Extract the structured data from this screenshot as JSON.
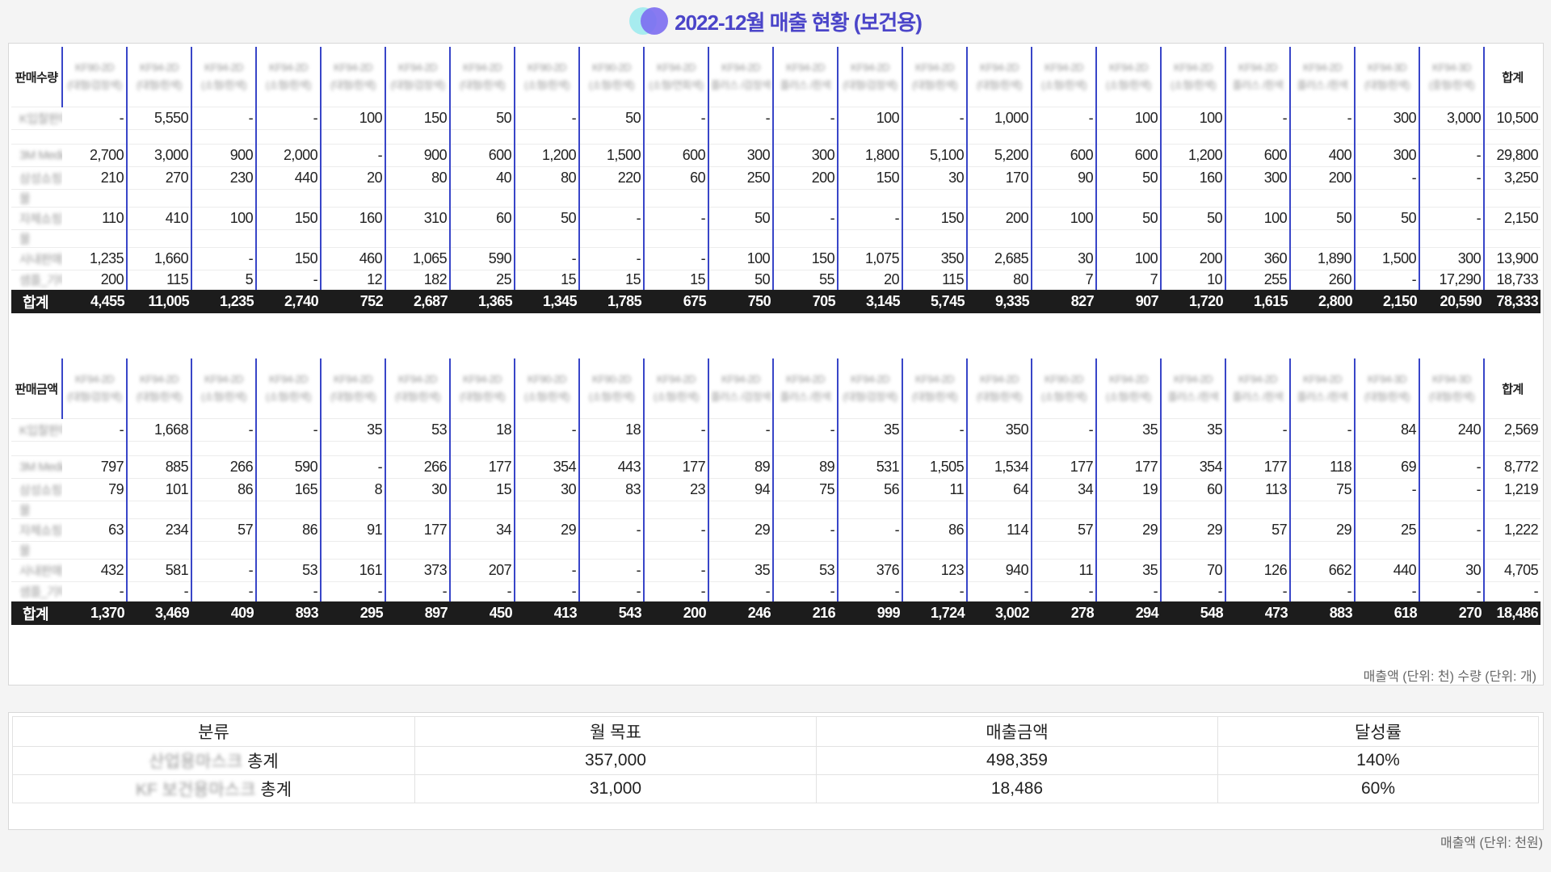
{
  "title": "2022-12월 매출 현황 (보건용)",
  "qty": {
    "label": "판매수량",
    "total_label": "합계",
    "products": [
      {
        "l1": "KF90-2D",
        "l2": "(대형/검정색)"
      },
      {
        "l1": "KF94-2D",
        "l2": "(대형/흰색)"
      },
      {
        "l1": "KF94-2D",
        "l2": "(소형/흰색)"
      },
      {
        "l1": "KF94-2D",
        "l2": "(소형/흰색)"
      },
      {
        "l1": "KF94-2D",
        "l2": "(대형/흰색)"
      },
      {
        "l1": "KF94-2D",
        "l2": "(대형/검정색)"
      },
      {
        "l1": "KF94-2D",
        "l2": "(대형/흰색)"
      },
      {
        "l1": "KF90-2D",
        "l2": "(소형/흰색)"
      },
      {
        "l1": "KF90-2D",
        "l2": "(소형/흰색)"
      },
      {
        "l1": "KF94-2D",
        "l2": "(소형/연회색)"
      },
      {
        "l1": "KF94-2D",
        "l2": "플러스 /검정색"
      },
      {
        "l1": "KF94-2D",
        "l2": "플러스 /흰색"
      },
      {
        "l1": "KF94-2D",
        "l2": "(대형/검정색)"
      },
      {
        "l1": "KF94-2D",
        "l2": "(대형/흰색)"
      },
      {
        "l1": "KF94-2D",
        "l2": "(대형/흰색)"
      },
      {
        "l1": "KF94-2D",
        "l2": "(소형/흰색)"
      },
      {
        "l1": "KF94-2D",
        "l2": "(소형/흰색)"
      },
      {
        "l1": "KF94-2D",
        "l2": "(소형/흰색)"
      },
      {
        "l1": "KF94-2D",
        "l2": "플러스 /흰색"
      },
      {
        "l1": "KF94-2D",
        "l2": "플러스 /흰색"
      },
      {
        "l1": "KF94-3D",
        "l2": "(대형/흰색)"
      },
      {
        "l1": "KF94-3D",
        "l2": "(중형/흰색)"
      }
    ],
    "rows": [
      {
        "label": "K입찰판매",
        "vals": [
          "-",
          "5,550",
          "-",
          "-",
          "100",
          "150",
          "50",
          "-",
          "50",
          "-",
          "-",
          "-",
          "100",
          "-",
          "1,000",
          "-",
          "100",
          "100",
          "-",
          "-",
          "300",
          "3,000"
        ],
        "total": "10,500"
      },
      {
        "label": "",
        "vals": [
          "",
          "",
          "",
          "",
          "",
          "",
          "",
          "",
          "",
          "",
          "",
          "",
          "",
          "",
          "",
          "",
          "",
          "",
          "",
          "",
          "",
          ""
        ],
        "total": ""
      },
      {
        "label": "3M Media",
        "vals": [
          "2,700",
          "3,000",
          "900",
          "2,000",
          "-",
          "900",
          "600",
          "1,200",
          "1,500",
          "600",
          "300",
          "300",
          "1,800",
          "5,100",
          "5,200",
          "600",
          "600",
          "1,200",
          "600",
          "400",
          "300",
          "-"
        ],
        "total": "29,800"
      },
      {
        "label": "삼성쇼핑",
        "vals": [
          "210",
          "270",
          "230",
          "440",
          "20",
          "80",
          "40",
          "80",
          "220",
          "60",
          "250",
          "200",
          "150",
          "30",
          "170",
          "90",
          "50",
          "160",
          "300",
          "200",
          "-",
          "-"
        ],
        "total": "3,250"
      },
      {
        "label": "몰",
        "vals": [
          "",
          "",
          "",
          "",
          "",
          "",
          "",
          "",
          "",
          "",
          "",
          "",
          "",
          "",
          "",
          "",
          "",
          "",
          "",
          "",
          "",
          ""
        ],
        "total": ""
      },
      {
        "label": "자체쇼핑",
        "vals": [
          "110",
          "410",
          "100",
          "150",
          "160",
          "310",
          "60",
          "50",
          "-",
          "-",
          "50",
          "-",
          "-",
          "150",
          "200",
          "100",
          "50",
          "50",
          "100",
          "50",
          "50",
          "-"
        ],
        "total": "2,150"
      },
      {
        "label": "몰",
        "vals": [
          "",
          "",
          "",
          "",
          "",
          "",
          "",
          "",
          "",
          "",
          "",
          "",
          "",
          "",
          "",
          "",
          "",
          "",
          "",
          "",
          "",
          ""
        ],
        "total": ""
      },
      {
        "label": "사내판매",
        "vals": [
          "1,235",
          "1,660",
          "-",
          "150",
          "460",
          "1,065",
          "590",
          "-",
          "-",
          "-",
          "100",
          "150",
          "1,075",
          "350",
          "2,685",
          "30",
          "100",
          "200",
          "360",
          "1,890",
          "1,500",
          "300"
        ],
        "total": "13,900"
      },
      {
        "label": "샘플_기타",
        "vals": [
          "200",
          "115",
          "5",
          "-",
          "12",
          "182",
          "25",
          "15",
          "15",
          "15",
          "50",
          "55",
          "20",
          "115",
          "80",
          "7",
          "7",
          "10",
          "255",
          "260",
          "-",
          "17,290"
        ],
        "total": "18,733"
      }
    ],
    "sum": {
      "label": "합계",
      "vals": [
        "4,455",
        "11,005",
        "1,235",
        "2,740",
        "752",
        "2,687",
        "1,365",
        "1,345",
        "1,785",
        "675",
        "750",
        "705",
        "3,145",
        "5,745",
        "9,335",
        "827",
        "907",
        "1,720",
        "1,615",
        "2,800",
        "2,150",
        "20,590"
      ],
      "total": "78,333"
    }
  },
  "amt": {
    "label": "판매금액",
    "total_label": "합계",
    "products": [
      {
        "l1": "KF94-2D",
        "l2": "(대형/검정색)"
      },
      {
        "l1": "KF94-2D",
        "l2": "(대형/흰색)"
      },
      {
        "l1": "KF94-2D",
        "l2": "(소형/흰색)"
      },
      {
        "l1": "KF94-2D",
        "l2": "(소형/흰색)"
      },
      {
        "l1": "KF94-2D",
        "l2": "(대형/흰색)"
      },
      {
        "l1": "KF94-2D",
        "l2": "(대형/흰색)"
      },
      {
        "l1": "KF94-2D",
        "l2": "(대형/흰색)"
      },
      {
        "l1": "KF90-2D",
        "l2": "(소형/흰색)"
      },
      {
        "l1": "KF90-2D",
        "l2": "(소형/흰색)"
      },
      {
        "l1": "KF94-2D",
        "l2": "(소형/흰색)"
      },
      {
        "l1": "KF94-2D",
        "l2": "플러스 /검정색"
      },
      {
        "l1": "KF94-2D",
        "l2": "플러스 /흰색"
      },
      {
        "l1": "KF94-2D",
        "l2": "(대형/검정색)"
      },
      {
        "l1": "KF94-2D",
        "l2": "(대형/흰색)"
      },
      {
        "l1": "KF94-2D",
        "l2": "(대형/흰색)"
      },
      {
        "l1": "KF90-2D",
        "l2": "(소형/흰색)"
      },
      {
        "l1": "KF94-2D",
        "l2": "(소형/흰색)"
      },
      {
        "l1": "KF94-2D",
        "l2": "플러스 /흰색"
      },
      {
        "l1": "KF94-2D",
        "l2": "플러스 /흰색"
      },
      {
        "l1": "KF94-2D",
        "l2": "플러스 /흰색"
      },
      {
        "l1": "KF94-3D",
        "l2": "(대형/흰색)"
      },
      {
        "l1": "KF94-3D",
        "l2": "(대형/흰색)"
      }
    ],
    "rows": [
      {
        "label": "K입찰판매",
        "vals": [
          "-",
          "1,668",
          "-",
          "-",
          "35",
          "53",
          "18",
          "-",
          "18",
          "-",
          "-",
          "-",
          "35",
          "-",
          "350",
          "-",
          "35",
          "35",
          "-",
          "-",
          "84",
          "240"
        ],
        "total": "2,569"
      },
      {
        "label": "",
        "vals": [
          "",
          "",
          "",
          "",
          "",
          "",
          "",
          "",
          "",
          "",
          "",
          "",
          "",
          "",
          "",
          "",
          "",
          "",
          "",
          "",
          "",
          ""
        ],
        "total": ""
      },
      {
        "label": "3M Media",
        "vals": [
          "797",
          "885",
          "266",
          "590",
          "-",
          "266",
          "177",
          "354",
          "443",
          "177",
          "89",
          "89",
          "531",
          "1,505",
          "1,534",
          "177",
          "177",
          "354",
          "177",
          "118",
          "69",
          "-"
        ],
        "total": "8,772"
      },
      {
        "label": "삼성쇼핑",
        "vals": [
          "79",
          "101",
          "86",
          "165",
          "8",
          "30",
          "15",
          "30",
          "83",
          "23",
          "94",
          "75",
          "56",
          "11",
          "64",
          "34",
          "19",
          "60",
          "113",
          "75",
          "-",
          "-"
        ],
        "total": "1,219"
      },
      {
        "label": "몰",
        "vals": [
          "",
          "",
          "",
          "",
          "",
          "",
          "",
          "",
          "",
          "",
          "",
          "",
          "",
          "",
          "",
          "",
          "",
          "",
          "",
          "",
          "",
          ""
        ],
        "total": ""
      },
      {
        "label": "자체쇼핑",
        "vals": [
          "63",
          "234",
          "57",
          "86",
          "91",
          "177",
          "34",
          "29",
          "-",
          "-",
          "29",
          "-",
          "-",
          "86",
          "114",
          "57",
          "29",
          "29",
          "57",
          "29",
          "25",
          "-"
        ],
        "total": "1,222"
      },
      {
        "label": "몰",
        "vals": [
          "",
          "",
          "",
          "",
          "",
          "",
          "",
          "",
          "",
          "",
          "",
          "",
          "",
          "",
          "",
          "",
          "",
          "",
          "",
          "",
          "",
          ""
        ],
        "total": ""
      },
      {
        "label": "사내판매",
        "vals": [
          "432",
          "581",
          "-",
          "53",
          "161",
          "373",
          "207",
          "-",
          "-",
          "-",
          "35",
          "53",
          "376",
          "123",
          "940",
          "11",
          "35",
          "70",
          "126",
          "662",
          "440",
          "30"
        ],
        "total": "4,705"
      },
      {
        "label": "샘플_기타",
        "vals": [
          "-",
          "-",
          "-",
          "-",
          "-",
          "-",
          "-",
          "-",
          "-",
          "-",
          "-",
          "-",
          "-",
          "-",
          "-",
          "-",
          "-",
          "-",
          "-",
          "-",
          "-",
          "-"
        ],
        "total": "-"
      }
    ],
    "sum": {
      "label": "합계",
      "vals": [
        "1,370",
        "3,469",
        "409",
        "893",
        "295",
        "897",
        "450",
        "413",
        "543",
        "200",
        "246",
        "216",
        "999",
        "1,724",
        "3,002",
        "278",
        "294",
        "548",
        "473",
        "883",
        "618",
        "270"
      ],
      "total": "18,486"
    }
  },
  "unit_note_1": "매출액 (단위: 천) 수량 (단위: 개)",
  "summary": {
    "headers": [
      "분류",
      "월 목표",
      "매출금액",
      "달성률"
    ],
    "rows": [
      {
        "name": "산업용마스크",
        "suffix": "총계",
        "target": "357,000",
        "sales": "498,359",
        "rate": "140%"
      },
      {
        "name": "KF 보건용마스크",
        "suffix": "총계",
        "target": "31,000",
        "sales": "18,486",
        "rate": "60%"
      }
    ]
  },
  "unit_note_2": "매출액 (단위: 천원)",
  "colors": {
    "accent": "#4b45c9",
    "divider": "#3845c8",
    "sum_bg": "#1c1c1c"
  }
}
